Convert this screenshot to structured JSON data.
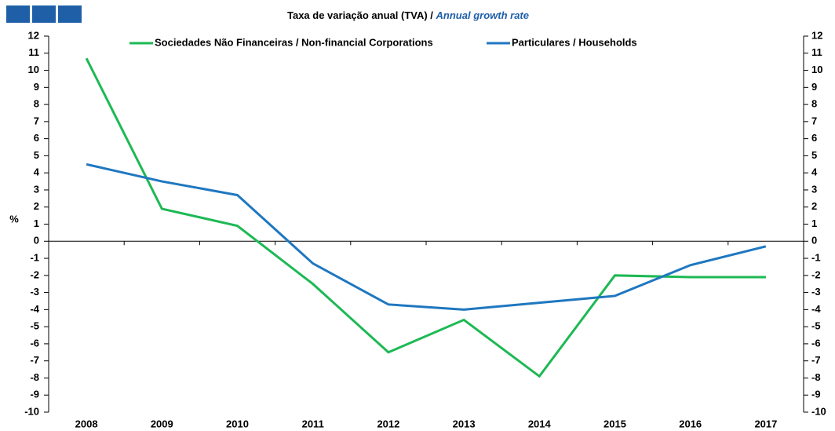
{
  "chart_data": {
    "type": "line",
    "title": "Taxa de variação anual (TVA) / ",
    "title_en": "Annual growth rate",
    "ylabel": "%",
    "categories": [
      "2008",
      "2009",
      "2010",
      "2011",
      "2012",
      "2013",
      "2014",
      "2015",
      "2016",
      "2017"
    ],
    "series": [
      {
        "name": "Sociedades Não Financeiras / Non-financial Corporations",
        "color": "#1db954",
        "values": [
          10.7,
          1.9,
          0.9,
          -2.5,
          -6.5,
          -4.6,
          -7.9,
          -2.0,
          -2.1,
          -2.1
        ]
      },
      {
        "name": "Particulares / Households",
        "color": "#1f77c0",
        "values": [
          4.5,
          3.5,
          2.7,
          -1.3,
          -3.7,
          -4.0,
          -3.6,
          -3.2,
          -1.4,
          -0.3
        ]
      }
    ],
    "ylim": [
      -10,
      12
    ],
    "yticks": [
      12,
      11,
      10,
      9,
      8,
      7,
      6,
      5,
      4,
      3,
      2,
      1,
      0,
      -1,
      -2,
      -3,
      -4,
      -5,
      -6,
      -7,
      -8,
      -9,
      -10
    ],
    "y2lim": [
      -10,
      12
    ],
    "y2ticks": [
      12,
      11,
      10,
      9,
      8,
      7,
      6,
      5,
      4,
      3,
      2,
      1,
      0,
      -1,
      -2,
      -3,
      -4,
      -5,
      -6,
      -7,
      -8,
      -9,
      -10
    ],
    "legend": "top"
  }
}
